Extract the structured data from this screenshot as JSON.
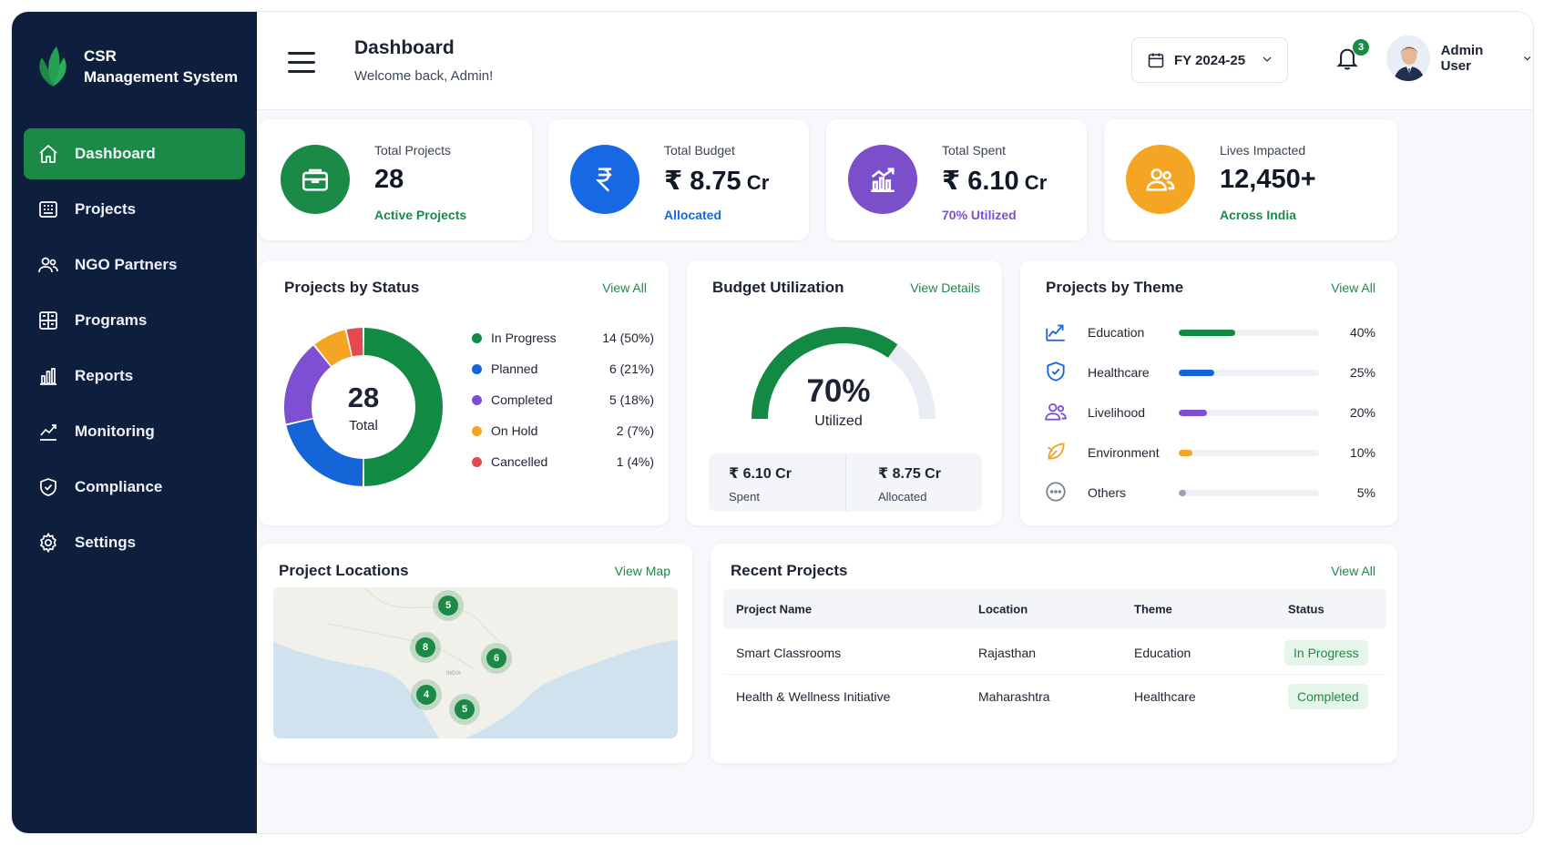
{
  "app": {
    "brand_line1": "CSR",
    "brand_line2": "Management System"
  },
  "sidebar": {
    "items": [
      {
        "label": "Dashboard",
        "icon": "home-icon"
      },
      {
        "label": "Projects",
        "icon": "projects-icon"
      },
      {
        "label": "NGO Partners",
        "icon": "partners-icon"
      },
      {
        "label": "Programs",
        "icon": "programs-icon"
      },
      {
        "label": "Reports",
        "icon": "reports-icon"
      },
      {
        "label": "Monitoring",
        "icon": "monitoring-icon"
      },
      {
        "label": "Compliance",
        "icon": "shield-icon"
      },
      {
        "label": "Settings",
        "icon": "gear-icon"
      }
    ]
  },
  "header": {
    "title": "Dashboard",
    "subtitle": "Welcome back, Admin!",
    "fy": "FY 2024-25",
    "notifications": "3",
    "user": "Admin User"
  },
  "kpis": [
    {
      "label": "Total Projects",
      "value": "28",
      "unit": "",
      "sub": "Active Projects",
      "color": "#1c8a47",
      "sub_color": "#1c8a47"
    },
    {
      "label": "Total Budget",
      "value": "₹ 8.75",
      "unit": " Cr",
      "sub": "Allocated",
      "color": "#1668e3",
      "sub_color": "#1668e3"
    },
    {
      "label": "Total Spent",
      "value": "₹ 6.10",
      "unit": " Cr",
      "sub": "70% Utilized",
      "color": "#7a4fc9",
      "sub_color": "#7a4fc9"
    },
    {
      "label": "Lives Impacted",
      "value": "12,450+",
      "unit": "",
      "sub": "Across India",
      "color": "#f5a524",
      "sub_color": "#1c8a47"
    }
  ],
  "status": {
    "title": "Projects by Status",
    "link": "View All",
    "total": "28",
    "total_label": "Total",
    "items": [
      {
        "label": "In Progress",
        "value": "14 (50%)",
        "count": 14,
        "color": "#138a43"
      },
      {
        "label": "Planned",
        "value": "6 (21%)",
        "count": 6,
        "color": "#1565d8"
      },
      {
        "label": "Completed",
        "value": "5 (18%)",
        "count": 5,
        "color": "#7e4fd0"
      },
      {
        "label": "On Hold",
        "value": "2 (7%)",
        "count": 2,
        "color": "#f5a524"
      },
      {
        "label": "Cancelled",
        "value": "1 (4%)",
        "count": 1,
        "color": "#e5484d"
      }
    ]
  },
  "budget": {
    "title": "Budget Utilization",
    "link": "View Details",
    "percent": "70%",
    "percent_label": "Utilized",
    "fraction": 0.7,
    "spent_value": "₹ 6.10 Cr",
    "spent_label": "Spent",
    "allocated_value": "₹ 8.75 Cr",
    "allocated_label": "Allocated"
  },
  "themes": {
    "title": "Projects by Theme",
    "link": "View All",
    "items": [
      {
        "label": "Education",
        "pct": "40%",
        "fraction": 0.4,
        "color": "#138a43",
        "icon": "education-icon"
      },
      {
        "label": "Healthcare",
        "pct": "25%",
        "fraction": 0.25,
        "color": "#1565d8",
        "icon": "health-shield-icon"
      },
      {
        "label": "Livelihood",
        "pct": "20%",
        "fraction": 0.2,
        "color": "#7e4fd0",
        "icon": "people-icon"
      },
      {
        "label": "Environment",
        "pct": "10%",
        "fraction": 0.1,
        "color": "#f5a524",
        "icon": "leaf-icon"
      },
      {
        "label": "Others",
        "pct": "5%",
        "fraction": 0.05,
        "color": "#9aa3af",
        "icon": "more-icon"
      }
    ]
  },
  "locations": {
    "title": "Project Locations",
    "link": "View Map",
    "map_label": "INDIA",
    "markers": [
      "5",
      "8",
      "6",
      "4",
      "5"
    ]
  },
  "recent": {
    "title": "Recent Projects",
    "link": "View All",
    "columns": [
      "Project Name",
      "Location",
      "Theme",
      "Status"
    ],
    "rows": [
      [
        "Smart Classrooms",
        "Rajasthan",
        "Education",
        "In Progress"
      ],
      [
        "Health & Wellness Initiative",
        "Maharashtra",
        "Healthcare",
        "Completed"
      ]
    ]
  }
}
